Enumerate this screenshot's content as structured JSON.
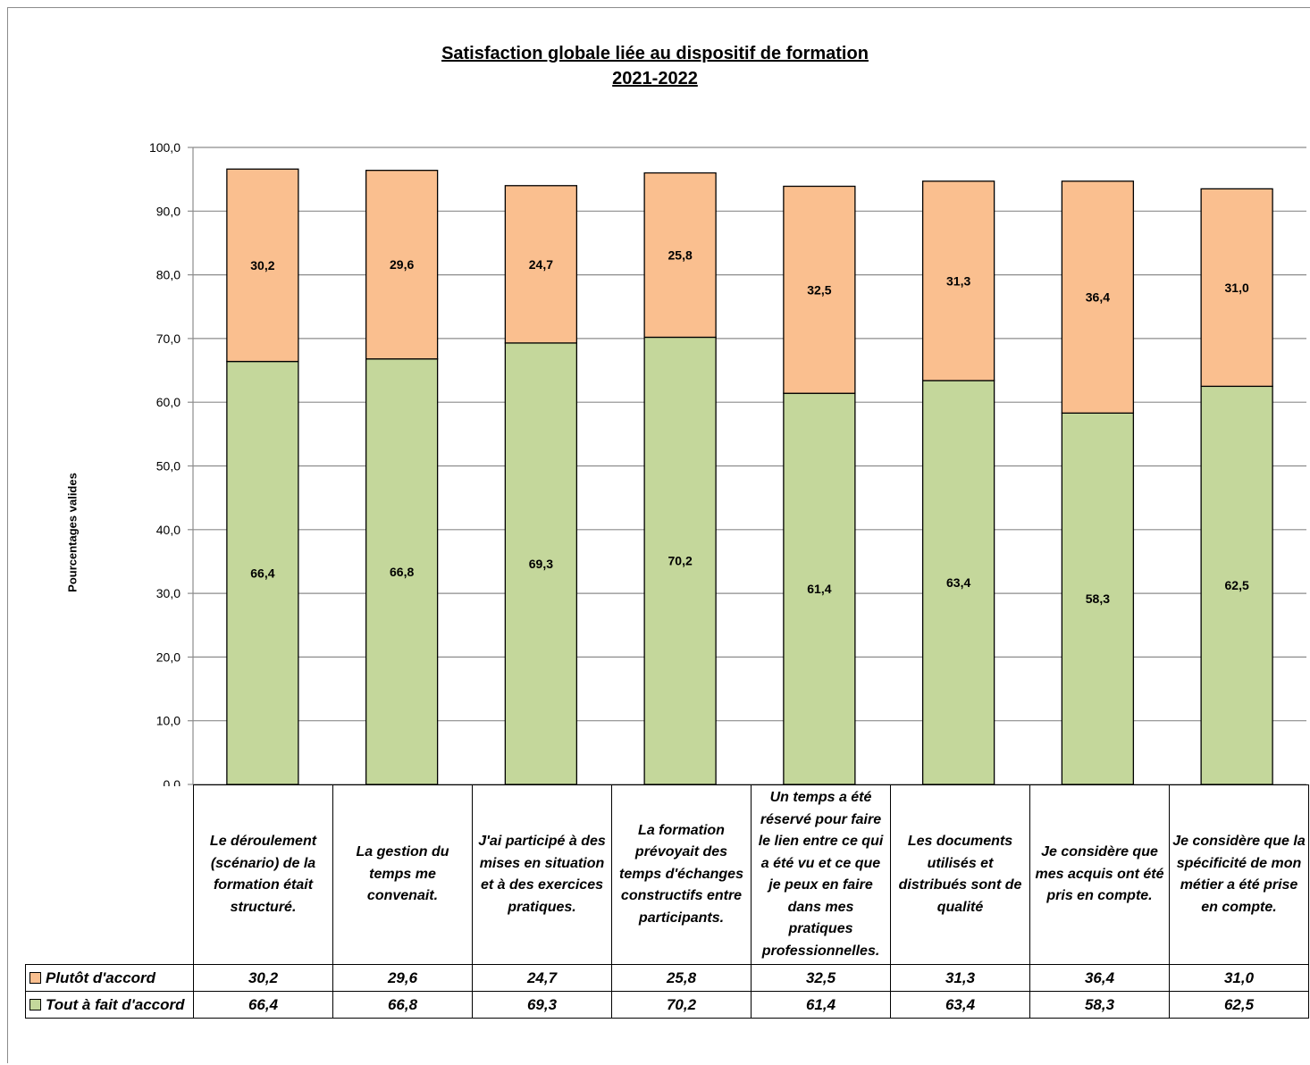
{
  "chart_data": {
    "type": "bar",
    "stacked": true,
    "title": [
      "Satisfaction globale liée au dispositif de formation",
      "2021-2022"
    ],
    "ylabel": "Pourcentages valides",
    "ylim": [
      0,
      100
    ],
    "yticks": [
      "0,0",
      "10,0",
      "20,0",
      "30,0",
      "40,0",
      "50,0",
      "60,0",
      "70,0",
      "80,0",
      "90,0",
      "100,0"
    ],
    "grid": true,
    "legend_placement": "data-table",
    "categories": [
      "Le déroulement (scénario) de la formation était structuré.",
      "La gestion du temps me convenait.",
      "J'ai participé à des mises en situation et à des exercices pratiques.",
      "La formation prévoyait des temps d'échanges constructifs entre participants.",
      "Un temps a été réservé pour faire le lien entre ce qui a été vu et ce que je peux en faire dans mes pratiques professionnelles.",
      "Les documents utilisés et distribués sont de qualité",
      "Je considère que mes acquis ont été pris en compte.",
      "Je considère que la spécificité de mon métier a été prise en compte."
    ],
    "series": [
      {
        "name": "Tout à fait d'accord",
        "color": "#c4d79b",
        "values": [
          66.4,
          66.8,
          69.3,
          70.2,
          61.4,
          63.4,
          58.3,
          62.5
        ],
        "labels": [
          "66,4",
          "66,8",
          "69,3",
          "70,2",
          "61,4",
          "63,4",
          "58,3",
          "62,5"
        ]
      },
      {
        "name": "Plutôt d'accord",
        "color": "#fabf8f",
        "values": [
          30.2,
          29.6,
          24.7,
          25.8,
          32.5,
          31.3,
          36.4,
          31.0
        ],
        "labels": [
          "30,2",
          "29,6",
          "24,7",
          "25,8",
          "32,5",
          "31,3",
          "36,4",
          "31,0"
        ]
      }
    ],
    "table_rows": [
      {
        "name": "Plutôt d'accord",
        "color": "#fabf8f",
        "labels": [
          "30,2",
          "29,6",
          "24,7",
          "25,8",
          "32,5",
          "31,3",
          "36,4",
          "31,0"
        ]
      },
      {
        "name": "Tout à fait d'accord",
        "color": "#c4d79b",
        "labels": [
          "66,4",
          "66,8",
          "69,3",
          "70,2",
          "61,4",
          "63,4",
          "58,3",
          "62,5"
        ]
      }
    ]
  }
}
